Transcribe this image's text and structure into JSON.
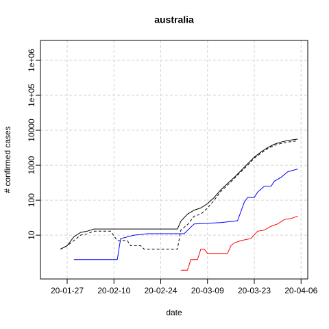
{
  "chart_data": {
    "type": "line",
    "title": "australia",
    "x_label": "date",
    "y_label": "# confirmed cases",
    "log_y": true,
    "grid": true,
    "xlim": [
      "20-01-19",
      "20-04-08"
    ],
    "xticks": [
      "20-01-27",
      "20-02-10",
      "20-02-24",
      "20-03-09",
      "20-03-23",
      "20-04-06"
    ],
    "ylim": [
      0.56,
      3700000
    ],
    "yticks": [
      10,
      100,
      1000,
      10000,
      {
        "value": 100000,
        "label": "1e+05"
      },
      {
        "value": 1000000,
        "label": "1e+06"
      }
    ],
    "series": [
      {
        "color": "#000000",
        "dash": false,
        "x": [
          "20-01-25",
          "20-01-27",
          "20-01-29",
          "20-01-31",
          "20-02-02",
          "20-02-04",
          "20-02-29",
          "20-03-01",
          "20-03-03",
          "20-03-05",
          "20-03-07",
          "20-03-09",
          "20-03-11",
          "20-03-13",
          "20-03-15",
          "20-03-17",
          "20-03-19",
          "20-03-21",
          "20-03-23",
          "20-03-25",
          "20-03-27",
          "20-03-29",
          "20-03-31",
          "20-04-02",
          "20-04-05"
        ],
        "values": [
          4,
          5,
          9,
          12,
          13,
          15,
          15,
          25,
          40,
          52,
          60,
          80,
          120,
          200,
          300,
          450,
          700,
          1100,
          1700,
          2400,
          3200,
          4000,
          4600,
          5100,
          5600
        ]
      },
      {
        "color": "#000000",
        "dash": true,
        "x": [
          "20-01-25",
          "20-01-27",
          "20-01-29",
          "20-01-31",
          "20-02-02",
          "20-02-04",
          "20-02-09",
          "20-02-11",
          "20-02-14",
          "20-02-15",
          "20-02-18",
          "20-02-19",
          "20-02-29",
          "20-03-01",
          "20-03-03",
          "20-03-05",
          "20-03-07",
          "20-03-09",
          "20-03-11",
          "20-03-13",
          "20-03-15",
          "20-03-17",
          "20-03-19",
          "20-03-21",
          "20-03-23",
          "20-03-25",
          "20-03-27",
          "20-03-29",
          "20-03-31",
          "20-04-02",
          "20-04-05"
        ],
        "values": [
          4,
          5,
          7,
          10,
          11,
          13,
          13,
          7,
          7,
          5,
          5,
          4,
          4,
          14,
          20,
          35,
          40,
          60,
          100,
          180,
          270,
          420,
          650,
          1000,
          1600,
          2200,
          3000,
          3700,
          4200,
          4600,
          5000
        ]
      },
      {
        "color": "#0000ff",
        "dash": false,
        "x": [
          "20-01-29",
          "20-02-11",
          "20-02-12",
          "20-02-16",
          "20-02-20",
          "20-03-02",
          "20-03-05",
          "20-03-13",
          "20-03-18",
          "20-03-20",
          "20-03-21",
          "20-03-23",
          "20-03-24",
          "20-03-26",
          "20-03-28",
          "20-03-29",
          "20-03-31",
          "20-04-02",
          "20-04-05"
        ],
        "values": [
          2,
          2,
          8,
          10,
          11,
          11,
          21,
          23,
          26,
          88,
          120,
          120,
          170,
          250,
          250,
          350,
          450,
          650,
          780
        ]
      },
      {
        "color": "#ff0000",
        "dash": false,
        "x": [
          "20-03-01",
          "20-03-03",
          "20-03-04",
          "20-03-06",
          "20-03-07",
          "20-03-08",
          "20-03-09",
          "20-03-15",
          "20-03-16",
          "20-03-17",
          "20-03-19",
          "20-03-22",
          "20-03-24",
          "20-03-26",
          "20-03-28",
          "20-03-30",
          "20-04-01",
          "20-04-03",
          "20-04-05"
        ],
        "values": [
          1,
          1,
          2,
          2,
          4,
          4,
          3,
          3,
          5,
          6,
          7,
          8,
          13,
          14,
          18,
          21,
          28,
          30,
          35
        ]
      }
    ]
  }
}
